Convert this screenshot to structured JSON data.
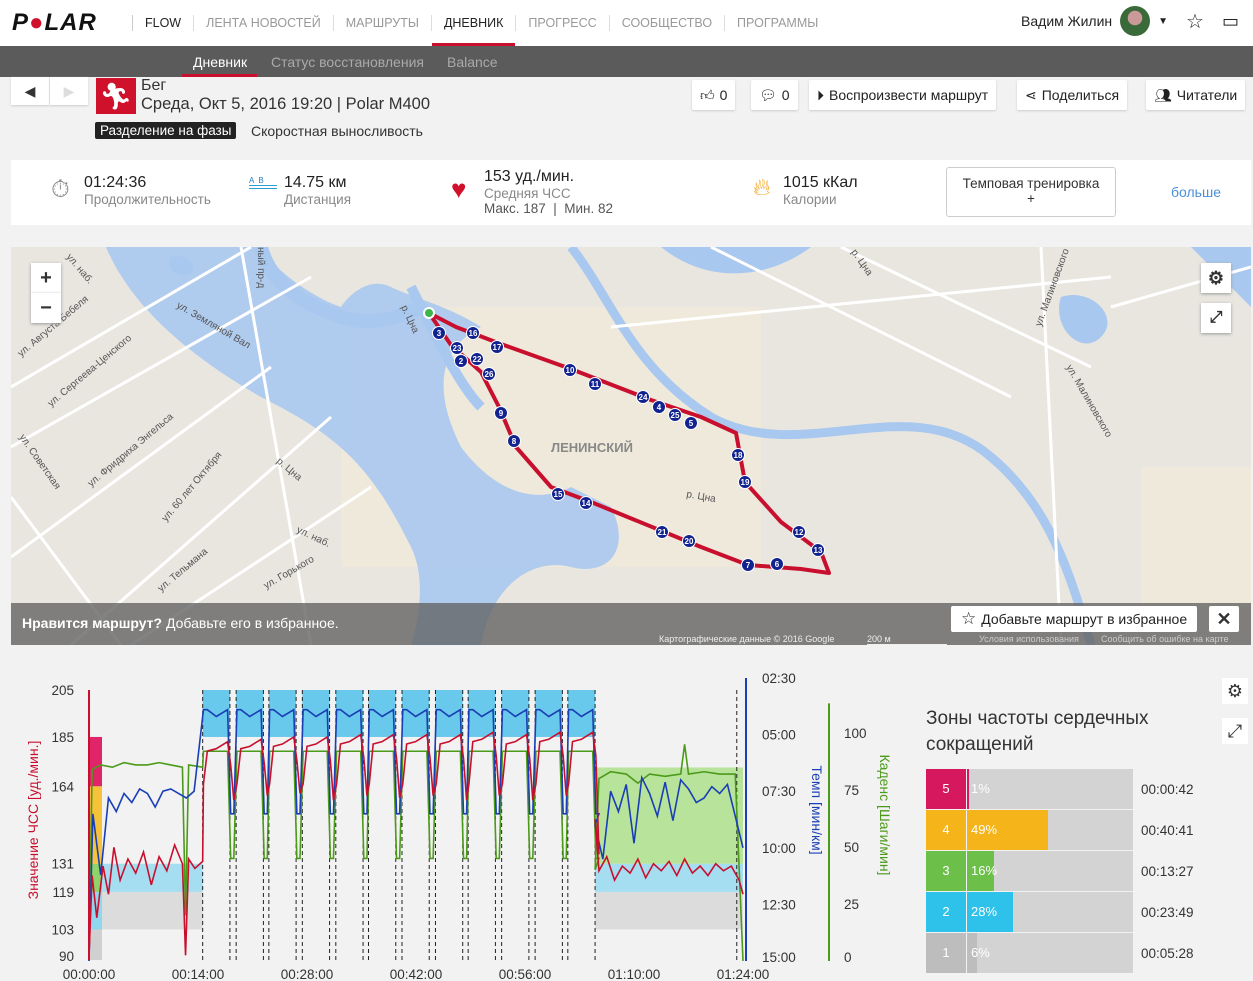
{
  "header": {
    "logo": "POLAR",
    "nav": [
      "FLOW",
      "ЛЕНТА НОВОСТЕЙ",
      "МАРШРУТЫ",
      "ДНЕВНИК",
      "ПРОГРЕСС",
      "СООБЩЕСТВО",
      "ПРОГРАММЫ"
    ],
    "active_nav": "ДНЕВНИК",
    "user_name": "Вадим Жилин"
  },
  "subnav": {
    "items": [
      "Дневник",
      "Статус восстановления",
      "Balance"
    ],
    "active": "Дневник"
  },
  "session": {
    "sport": "Бег",
    "date_device": "Среда, Окт 5, 2016 19:20 | Polar M400",
    "phase_tag": "Разделение на фазы",
    "phase_name": "Скоростная выносливость"
  },
  "actions": {
    "likes": "0",
    "comments": "0",
    "replay": "Воспроизвести маршрут",
    "share": "Поделиться",
    "followers": "Читатели"
  },
  "summary": {
    "duration": "01:24:36",
    "duration_label": "Продолжительность",
    "distance": "14.75 км",
    "distance_label": "Дистанция",
    "ab": "A  B",
    "hr_avg": "153 уд./мин.",
    "hr_avg_label": "Средняя ЧСС",
    "hr_minmax": "Макс. 187  |  Мин. 82",
    "calories": "1015 кКал",
    "calories_label": "Калории",
    "training_type": "Темповая тренировка",
    "training_add": "+",
    "more": "больше"
  },
  "map": {
    "zoom_in": "+",
    "zoom_out": "−",
    "markers": [
      "3",
      "23",
      "16",
      "17",
      "2",
      "22",
      "26",
      "10",
      "11",
      "24",
      "4",
      "25",
      "5",
      "9",
      "8",
      "18",
      "19",
      "15",
      "14",
      "12",
      "21",
      "20",
      "13",
      "7",
      "6"
    ],
    "labels": [
      "ул. Земляной Вал",
      "ЛЕНИНСКИЙ",
      "р. Цна",
      "р. Цна",
      "р. Цна",
      "р. Цна",
      "ул. Малиновского",
      "ул. Малиновского",
      "ул. Тельмана",
      "ул. 60 лет Октября",
      "ул. Фридриха Энгельса",
      "ул. Сергеева-Ценского",
      "ул. Советская",
      "ул. Августа Бебеля",
      "ул. наб.",
      "ул. наб.",
      "ул. Горького",
      "ный пр-д"
    ],
    "prompt_bold": "Нравится маршрут?",
    "prompt": "Добавьте его в избранное.",
    "fav_button": "Добавьте маршрут в избранное",
    "close": "✕",
    "attribution": "Картографические данные © 2016 Google",
    "scale": "200 м",
    "terms": "Условия использования",
    "report": "Сообщить об ошибке на карте"
  },
  "chart_data": {
    "type": "line",
    "title": "",
    "x_ticks": [
      "00:00:00",
      "00:14:00",
      "00:28:00",
      "00:42:00",
      "00:56:00",
      "01:10:00",
      "01:24:00"
    ],
    "x_range_min": [
      0,
      84
    ],
    "hr_axis": {
      "label": "Значение ЧСС [уд./мин.]",
      "ticks": [
        "205",
        "185",
        "164",
        "131",
        "119",
        "103",
        "90"
      ],
      "range": [
        90,
        205
      ]
    },
    "pace_axis": {
      "label": "Темп [мин/км]",
      "ticks": [
        "02:30",
        "05:00",
        "07:30",
        "10:00",
        "12:30",
        "15:00"
      ],
      "range": [
        2.5,
        15
      ]
    },
    "cadence_axis": {
      "label": "Каденс [Шаги/мин]",
      "ticks": [
        "100",
        "75",
        "50",
        "25",
        "0"
      ],
      "range": [
        0,
        100
      ]
    },
    "zone_bounds": [
      90,
      103,
      119,
      131,
      164,
      185,
      205
    ],
    "zone_colors": [
      "#d0d0d0",
      "#8fd6ee",
      "#8fd36a",
      "#f5c23a",
      "#e0246a"
    ],
    "intervals": [
      {
        "start": 14.6,
        "end": 18.1,
        "hr_peak": 183,
        "hr_rest": 158
      },
      {
        "start": 18.9,
        "end": 22.4,
        "hr_peak": 184,
        "hr_rest": 160
      },
      {
        "start": 23.1,
        "end": 26.6,
        "hr_peak": 185,
        "hr_rest": 161
      },
      {
        "start": 27.4,
        "end": 30.9,
        "hr_peak": 185,
        "hr_rest": 158
      },
      {
        "start": 31.7,
        "end": 35.2,
        "hr_peak": 186,
        "hr_rest": 160
      },
      {
        "start": 35.9,
        "end": 39.4,
        "hr_peak": 186,
        "hr_rest": 159
      },
      {
        "start": 40.2,
        "end": 43.7,
        "hr_peak": 186,
        "hr_rest": 160
      },
      {
        "start": 44.5,
        "end": 48.0,
        "hr_peak": 186,
        "hr_rest": 158
      },
      {
        "start": 48.7,
        "end": 52.2,
        "hr_peak": 187,
        "hr_rest": 160
      },
      {
        "start": 53.0,
        "end": 56.5,
        "hr_peak": 186,
        "hr_rest": 158
      },
      {
        "start": 57.3,
        "end": 60.8,
        "hr_peak": 187,
        "hr_rest": 160
      },
      {
        "start": 61.5,
        "end": 65.0,
        "hr_peak": 187,
        "hr_rest": 135
      }
    ],
    "interval_pace": 3.9,
    "rest_pace": 8.5,
    "interval_cadence": 92,
    "rest_cadence": 45,
    "hr_warmup": [
      [
        0,
        92
      ],
      [
        0.4,
        126
      ],
      [
        1,
        108
      ],
      [
        1.8,
        130
      ],
      [
        2.5,
        118
      ],
      [
        3.2,
        138
      ],
      [
        4,
        124
      ],
      [
        5,
        133
      ],
      [
        6,
        127
      ],
      [
        7,
        136
      ],
      [
        8,
        122
      ],
      [
        9,
        134
      ],
      [
        10,
        128
      ],
      [
        11,
        139
      ],
      [
        12,
        131
      ],
      [
        12.4,
        92
      ],
      [
        12.8,
        133
      ],
      [
        13.6,
        129
      ],
      [
        14.6,
        132
      ]
    ],
    "hr_cooldown": [
      [
        65,
        150
      ],
      [
        65.5,
        128
      ],
      [
        66.5,
        134
      ],
      [
        67.5,
        124
      ],
      [
        68.5,
        130
      ],
      [
        69.5,
        127
      ],
      [
        70.5,
        133
      ],
      [
        71.5,
        125
      ],
      [
        72.5,
        131
      ],
      [
        73.5,
        128
      ],
      [
        74.5,
        132
      ],
      [
        75.5,
        126
      ],
      [
        76.5,
        133
      ],
      [
        77.5,
        127
      ],
      [
        78.5,
        130
      ],
      [
        79.5,
        126
      ],
      [
        80.5,
        131
      ],
      [
        81.5,
        128
      ],
      [
        82.5,
        130
      ],
      [
        83.5,
        124
      ],
      [
        84,
        118
      ]
    ],
    "pace_warmup": [
      [
        0,
        15
      ],
      [
        0.5,
        8.5
      ],
      [
        1.5,
        11.2
      ],
      [
        2.5,
        7.8
      ],
      [
        3.5,
        8.4
      ],
      [
        4.5,
        7.6
      ],
      [
        5.5,
        8
      ],
      [
        6.5,
        7.4
      ],
      [
        7.5,
        7.6
      ],
      [
        8.5,
        8.2
      ],
      [
        9.5,
        7.5
      ],
      [
        10.5,
        7.4
      ],
      [
        11.5,
        7.6
      ],
      [
        12.5,
        7.8
      ],
      [
        13.5,
        7.5
      ]
    ],
    "pace_cooldown": [
      [
        65,
        9
      ],
      [
        66,
        10.5
      ],
      [
        67,
        7.5
      ],
      [
        68,
        8.4
      ],
      [
        69,
        7.2
      ],
      [
        70,
        9.8
      ],
      [
        71,
        6.9
      ],
      [
        72,
        7.6
      ],
      [
        73,
        8.6
      ],
      [
        74,
        7.1
      ],
      [
        75,
        8.8
      ],
      [
        76,
        7
      ],
      [
        77,
        7.4
      ],
      [
        78,
        8
      ],
      [
        79,
        7.8
      ],
      [
        80,
        7.3
      ],
      [
        81,
        7.6
      ],
      [
        82,
        7.2
      ],
      [
        83,
        8.6
      ],
      [
        84,
        10
      ]
    ],
    "cadence_warmup": [
      [
        0,
        0
      ],
      [
        0.4,
        84
      ],
      [
        1.5,
        86
      ],
      [
        3,
        85
      ],
      [
        4.5,
        87
      ],
      [
        6,
        86
      ],
      [
        7.5,
        86
      ],
      [
        9,
        87
      ],
      [
        10.5,
        86
      ],
      [
        12,
        85
      ],
      [
        12.4,
        20
      ],
      [
        12.8,
        86
      ],
      [
        14.6,
        85
      ]
    ],
    "cadence_cooldown": [
      [
        65,
        40
      ],
      [
        65.5,
        80
      ],
      [
        67,
        83
      ],
      [
        69,
        82
      ],
      [
        70.5,
        78
      ],
      [
        72,
        82
      ],
      [
        74,
        81
      ],
      [
        76,
        82
      ],
      [
        76.5,
        95
      ],
      [
        77,
        82
      ],
      [
        79,
        83
      ],
      [
        81,
        82
      ],
      [
        83,
        82
      ],
      [
        84,
        0
      ]
    ]
  },
  "zones": {
    "title": "Зоны частоты сердечных сокращений",
    "rows": [
      {
        "zone": "5",
        "percent": "1%",
        "value": 1,
        "time": "00:00:42",
        "color": "#d6195f"
      },
      {
        "zone": "4",
        "percent": "49%",
        "value": 49,
        "time": "00:40:41",
        "color": "#f4b41a"
      },
      {
        "zone": "3",
        "percent": "16%",
        "value": 16,
        "time": "00:13:27",
        "color": "#6cc04a"
      },
      {
        "zone": "2",
        "percent": "28%",
        "value": 28,
        "time": "00:23:49",
        "color": "#2ec2ea"
      },
      {
        "zone": "1",
        "percent": "6%",
        "value": 6,
        "time": "00:05:28",
        "color": "#bdbdbd"
      }
    ]
  },
  "colors": {
    "brand": "#d0112b",
    "hr": "#c8102e",
    "pace": "#1a3fb5",
    "cadence": "#4c9a1a",
    "link": "#4a90d9"
  }
}
